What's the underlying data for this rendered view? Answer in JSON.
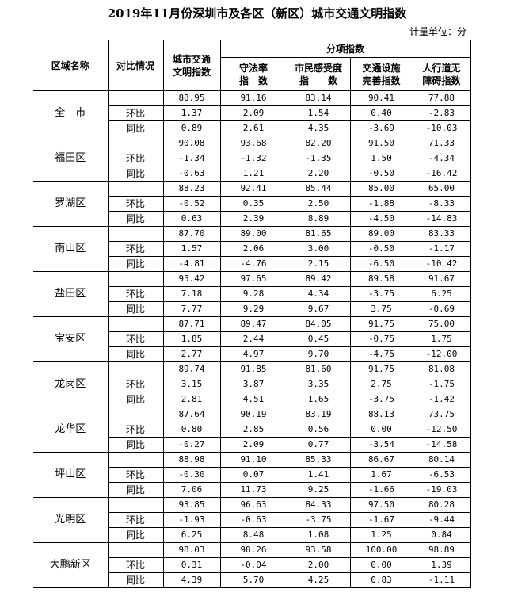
{
  "title": "2019年11月份深圳市及各区（新区）城市交通文明指数",
  "unit": "计量单位：分",
  "headers": {
    "region": "区域名称",
    "compare": "对比情况",
    "overall": [
      "城市交通",
      "文明指数"
    ],
    "group": "分项指数",
    "sub": [
      [
        "守法率",
        "指　数"
      ],
      [
        "市民感受度",
        "指　　数"
      ],
      [
        "交通设施",
        "完善指数"
      ],
      [
        "人行道无",
        "障碍指数"
      ]
    ]
  },
  "row_labels": [
    "",
    "环比",
    "同比"
  ],
  "regions": [
    {
      "name": "全　市",
      "rows": [
        [
          "88.95",
          "91.16",
          "83.14",
          "90.41",
          "77.88"
        ],
        [
          "1.37",
          "2.09",
          "1.54",
          "0.40",
          "-2.83"
        ],
        [
          "0.89",
          "2.61",
          "4.35",
          "-3.69",
          "-10.03"
        ]
      ]
    },
    {
      "name": "福田区",
      "rows": [
        [
          "90.08",
          "93.68",
          "82.20",
          "91.50",
          "71.33"
        ],
        [
          "-1.34",
          "-1.32",
          "-1.35",
          "1.50",
          "-4.34"
        ],
        [
          "-0.63",
          "1.21",
          "2.20",
          "-0.50",
          "-16.42"
        ]
      ]
    },
    {
      "name": "罗湖区",
      "rows": [
        [
          "88.23",
          "92.41",
          "85.44",
          "85.00",
          "65.00"
        ],
        [
          "-0.52",
          "0.35",
          "2.50",
          "-1.88",
          "-8.33"
        ],
        [
          "0.63",
          "2.39",
          "8.89",
          "-4.50",
          "-14.83"
        ]
      ]
    },
    {
      "name": "南山区",
      "rows": [
        [
          "87.70",
          "89.00",
          "81.65",
          "89.00",
          "83.33"
        ],
        [
          "1.57",
          "2.06",
          "3.00",
          "-0.50",
          "-1.17"
        ],
        [
          "-4.81",
          "-4.76",
          "2.15",
          "-6.50",
          "-10.42"
        ]
      ]
    },
    {
      "name": "盐田区",
      "rows": [
        [
          "95.42",
          "97.65",
          "89.42",
          "89.58",
          "91.67"
        ],
        [
          "7.18",
          "9.28",
          "4.34",
          "-3.75",
          "6.25"
        ],
        [
          "7.77",
          "9.29",
          "9.67",
          "3.75",
          "-0.69"
        ]
      ]
    },
    {
      "name": "宝安区",
      "rows": [
        [
          "87.71",
          "89.47",
          "84.05",
          "91.75",
          "75.00"
        ],
        [
          "1.85",
          "2.44",
          "0.45",
          "-0.75",
          "1.75"
        ],
        [
          "2.77",
          "4.97",
          "9.70",
          "-4.75",
          "-12.00"
        ]
      ]
    },
    {
      "name": "龙岗区",
      "rows": [
        [
          "89.74",
          "91.85",
          "81.60",
          "91.75",
          "81.08"
        ],
        [
          "3.15",
          "3.87",
          "3.35",
          "2.75",
          "-1.75"
        ],
        [
          "2.81",
          "4.51",
          "1.65",
          "-3.75",
          "-1.42"
        ]
      ]
    },
    {
      "name": "龙华区",
      "rows": [
        [
          "87.64",
          "90.19",
          "83.19",
          "88.13",
          "73.75"
        ],
        [
          "0.80",
          "2.85",
          "0.56",
          "0.00",
          "-12.50"
        ],
        [
          "-0.27",
          "2.09",
          "0.77",
          "-3.54",
          "-14.58"
        ]
      ]
    },
    {
      "name": "坪山区",
      "rows": [
        [
          "88.98",
          "91.10",
          "85.33",
          "86.67",
          "80.14"
        ],
        [
          "-0.30",
          "0.07",
          "1.41",
          "1.67",
          "-6.53"
        ],
        [
          "7.06",
          "11.73",
          "9.25",
          "-1.66",
          "-19.03"
        ]
      ]
    },
    {
      "name": "光明区",
      "rows": [
        [
          "93.85",
          "96.63",
          "84.33",
          "97.50",
          "80.28"
        ],
        [
          "-1.93",
          "-0.63",
          "-3.75",
          "-1.67",
          "-9.44"
        ],
        [
          "6.25",
          "8.48",
          "1.08",
          "1.25",
          "0.84"
        ]
      ]
    },
    {
      "name": "大鹏新区",
      "rows": [
        [
          "98.03",
          "98.26",
          "93.58",
          "100.00",
          "98.89"
        ],
        [
          "0.31",
          "-0.04",
          "2.00",
          "0.00",
          "1.39"
        ],
        [
          "4.39",
          "5.70",
          "4.25",
          "0.83",
          "-1.11"
        ]
      ]
    }
  ]
}
